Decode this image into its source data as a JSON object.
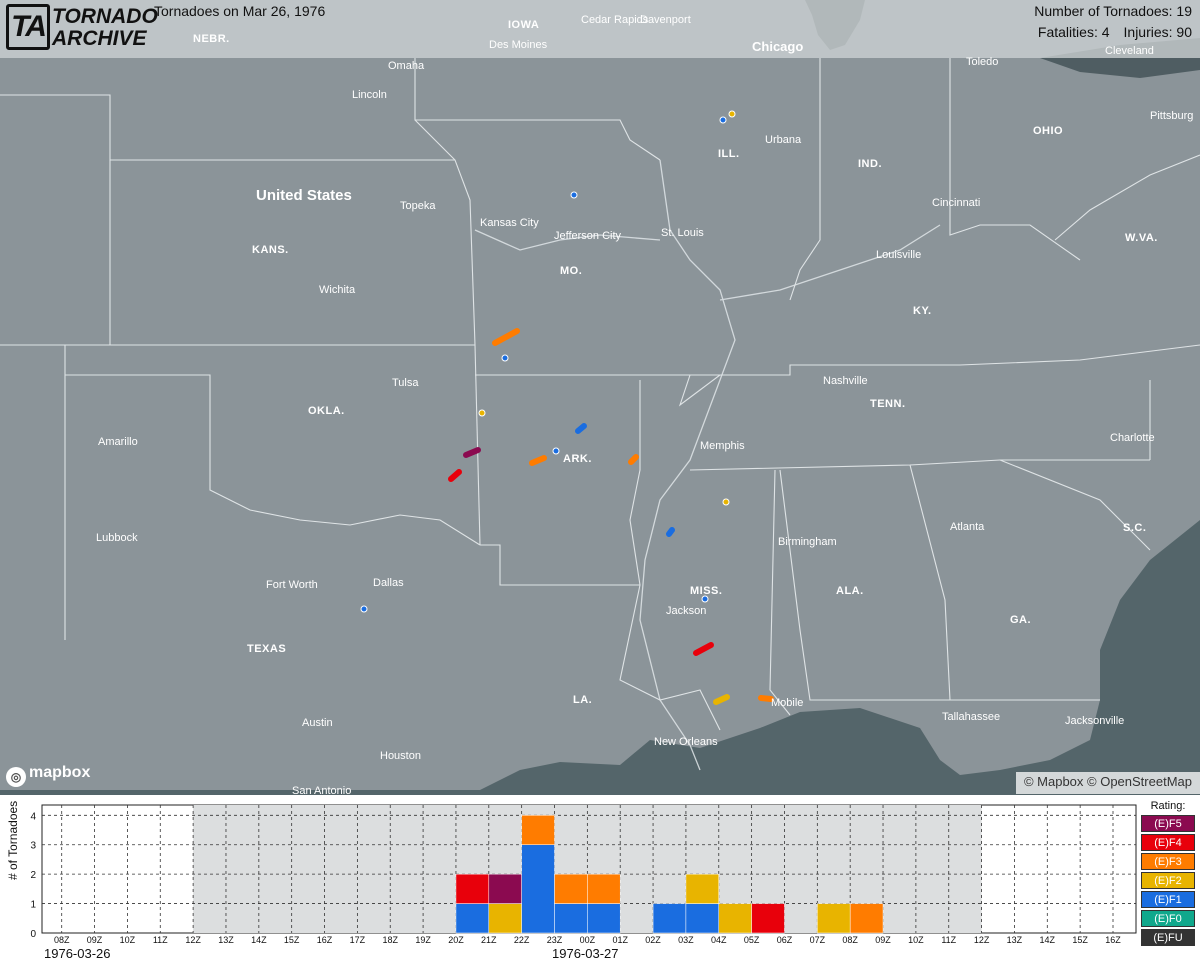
{
  "header": {
    "logo_mark": "TA",
    "logo_line1": "TORNADO",
    "logo_line2": "ARCHIVE",
    "title": "Tornadoes on Mar 26, 1976",
    "tornado_count_label": "Number of Tornadoes: 19",
    "fatalities_label": "Fatalities: 4",
    "injuries_label": "Injuries: 90"
  },
  "map": {
    "mapbox_label": "mapbox",
    "attribution": "© Mapbox © OpenStreetMap",
    "country_label": "United States",
    "state_labels": [
      "NEBR.",
      "IOWA",
      "ILL.",
      "IND.",
      "OHIO",
      "W.VA.",
      "KANS.",
      "MO.",
      "KY.",
      "OKLA.",
      "ARK.",
      "TENN.",
      "S.C.",
      "TEXAS",
      "MISS.",
      "ALA.",
      "GA.",
      "LA."
    ],
    "city_labels": [
      "Omaha",
      "Lincoln",
      "Des Moines",
      "Cedar Rapids",
      "Davenport",
      "Chicago",
      "Toledo",
      "Cleveland",
      "Pittsburg",
      "Urbana",
      "Topeka",
      "Kansas City",
      "Jefferson City",
      "St. Louis",
      "Cincinnati",
      "Louisville",
      "Wichita",
      "Tulsa",
      "Nashville",
      "Memphis",
      "Charlotte",
      "Amarillo",
      "Lubbock",
      "Fort Worth",
      "Dallas",
      "Birmingham",
      "Atlanta",
      "Jackson",
      "Austin",
      "Houston",
      "New Orleans",
      "Mobile",
      "Tallahassee",
      "Jacksonville",
      "San Antonio"
    ],
    "tornado_colors": {
      "F5": "#8b0a50",
      "F4": "#e8000b",
      "F3": "#ff7c00",
      "F2": "#e8b400",
      "F1": "#1a6de0",
      "F0": "#10a88c",
      "FU": "#333333"
    }
  },
  "chart_data": {
    "type": "bar",
    "stacked": true,
    "ylabel": "# of Tornadoes",
    "xlabel": "",
    "ylim": [
      0,
      4
    ],
    "yticks": [
      "0",
      "1",
      "2",
      "3",
      "4"
    ],
    "categories": [
      "08Z",
      "09Z",
      "10Z",
      "11Z",
      "12Z",
      "13Z",
      "14Z",
      "15Z",
      "16Z",
      "17Z",
      "18Z",
      "19Z",
      "20Z",
      "21Z",
      "22Z",
      "23Z",
      "00Z",
      "01Z",
      "02Z",
      "03Z",
      "04Z",
      "05Z",
      "06Z",
      "07Z",
      "08Z",
      "09Z",
      "10Z",
      "11Z",
      "12Z",
      "13Z",
      "14Z",
      "15Z",
      "16Z"
    ],
    "date_labels": [
      {
        "label": "1976-03-26",
        "at": "08Z"
      },
      {
        "label": "1976-03-27",
        "at": "00Z"
      }
    ],
    "shaded_range": [
      "12Z",
      "12Z"
    ],
    "series": [
      {
        "name": "(E)F1",
        "color": "#1a6de0",
        "values": [
          0,
          0,
          0,
          0,
          0,
          0,
          0,
          0,
          0,
          0,
          0,
          0,
          1,
          0,
          3,
          1,
          1,
          0,
          1,
          1,
          0,
          0,
          0,
          0,
          0,
          0,
          0,
          0,
          0,
          0,
          0,
          0,
          0
        ]
      },
      {
        "name": "(E)F2",
        "color": "#e8b400",
        "values": [
          0,
          0,
          0,
          0,
          0,
          0,
          0,
          0,
          0,
          0,
          0,
          0,
          0,
          1,
          0,
          0,
          0,
          0,
          0,
          1,
          1,
          0,
          0,
          1,
          0,
          0,
          0,
          0,
          0,
          0,
          0,
          0,
          0
        ]
      },
      {
        "name": "(E)F3",
        "color": "#ff7c00",
        "values": [
          0,
          0,
          0,
          0,
          0,
          0,
          0,
          0,
          0,
          0,
          0,
          0,
          0,
          0,
          1,
          1,
          1,
          0,
          0,
          0,
          0,
          0,
          0,
          0,
          1,
          0,
          0,
          0,
          0,
          0,
          0,
          0,
          0
        ]
      },
      {
        "name": "(E)F4",
        "color": "#e8000b",
        "values": [
          0,
          0,
          0,
          0,
          0,
          0,
          0,
          0,
          0,
          0,
          0,
          0,
          1,
          0,
          0,
          0,
          0,
          0,
          0,
          0,
          0,
          1,
          0,
          0,
          0,
          0,
          0,
          0,
          0,
          0,
          0,
          0,
          0
        ]
      },
      {
        "name": "(E)F5",
        "color": "#8b0a50",
        "values": [
          0,
          0,
          0,
          0,
          0,
          0,
          0,
          0,
          0,
          0,
          0,
          0,
          0,
          1,
          0,
          0,
          0,
          0,
          0,
          0,
          0,
          0,
          0,
          0,
          0,
          0,
          0,
          0,
          0,
          0,
          0,
          0,
          0
        ]
      }
    ],
    "legend": {
      "title": "Rating:",
      "placement": "right",
      "items": [
        {
          "label": "(E)F5",
          "color": "#8b0a50"
        },
        {
          "label": "(E)F4",
          "color": "#e8000b"
        },
        {
          "label": "(E)F3",
          "color": "#ff7c00"
        },
        {
          "label": "(E)F2",
          "color": "#e8b400"
        },
        {
          "label": "(E)F1",
          "color": "#1a6de0"
        },
        {
          "label": "(E)F0",
          "color": "#10a88c"
        },
        {
          "label": "(E)FU",
          "color": "#333333"
        }
      ]
    }
  }
}
